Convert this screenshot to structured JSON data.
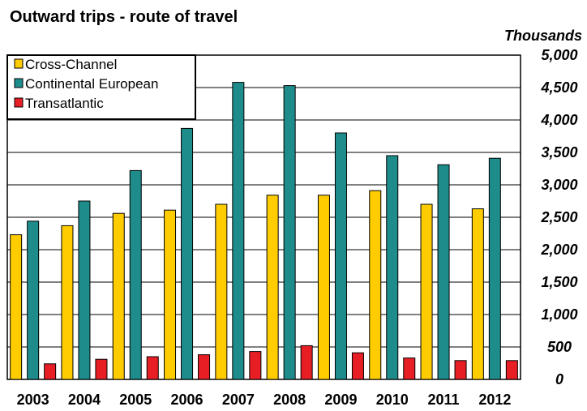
{
  "chart_data": {
    "type": "bar",
    "title": "Outward trips - route of travel",
    "unit_label": "Thousands",
    "xlabel": "",
    "ylabel": "",
    "categories": [
      "2003",
      "2004",
      "2005",
      "2006",
      "2007",
      "2008",
      "2009",
      "2010",
      "2011",
      "2012"
    ],
    "ylim": [
      0,
      5000
    ],
    "yticks": [
      "0",
      "500",
      "1,000",
      "1,500",
      "2,000",
      "2,500",
      "3,000",
      "3,500",
      "4,000",
      "4,500",
      "5,000"
    ],
    "grid": true,
    "y_axis_position": "right",
    "legend_position": "top-left",
    "series": [
      {
        "name": "Cross-Channel",
        "color": "#FFCC00",
        "values": [
          2230,
          2370,
          2560,
          2610,
          2700,
          2840,
          2840,
          2910,
          2700,
          2630
        ]
      },
      {
        "name": "Continental European",
        "color": "#1F8C8C",
        "values": [
          2440,
          2750,
          3220,
          3870,
          4580,
          4530,
          3800,
          3450,
          3310,
          3410
        ]
      },
      {
        "name": "Transatlantic",
        "color": "#E81E25",
        "values": [
          240,
          310,
          350,
          380,
          430,
          520,
          410,
          330,
          290,
          290
        ]
      }
    ]
  }
}
